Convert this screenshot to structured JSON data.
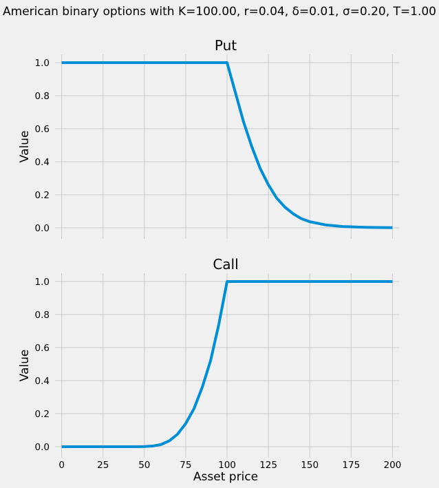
{
  "figure": {
    "suptitle": "American binary options with K=100.00, r=0.04, δ=0.01, σ=0.20, T=1.00",
    "background": "#f0f0f0",
    "grid_color": "#cbcbcb",
    "line_color": "#008fd5"
  },
  "chart_data": [
    {
      "type": "line",
      "title": "Put",
      "xlabel": "",
      "ylabel": "Value",
      "xlim": [
        -4,
        204
      ],
      "ylim": [
        -0.05,
        1.05
      ],
      "grid": true,
      "xticks": [
        0,
        25,
        50,
        75,
        100,
        125,
        150,
        175,
        200
      ],
      "xtick_labels": [],
      "yticks": [
        0.0,
        0.2,
        0.4,
        0.6,
        0.8,
        1.0
      ],
      "ytick_labels": [
        "0.0",
        "0.2",
        "0.4",
        "0.6",
        "0.8",
        "1.0"
      ],
      "series": [
        {
          "color": "#008fd5",
          "x": [
            0,
            25,
            50,
            75,
            100,
            105,
            110,
            115,
            120,
            125,
            130,
            135,
            140,
            145,
            150,
            160,
            170,
            180,
            190,
            200
          ],
          "y": [
            1.0,
            1.0,
            1.0,
            1.0,
            1.0,
            0.82,
            0.64,
            0.49,
            0.36,
            0.26,
            0.18,
            0.125,
            0.085,
            0.055,
            0.037,
            0.017,
            0.008,
            0.004,
            0.002,
            0.001
          ]
        }
      ]
    },
    {
      "type": "line",
      "title": "Call",
      "xlabel": "Asset price",
      "ylabel": "Value",
      "xlim": [
        -4,
        204
      ],
      "ylim": [
        -0.05,
        1.05
      ],
      "grid": true,
      "xticks": [
        0,
        25,
        50,
        75,
        100,
        125,
        150,
        175,
        200
      ],
      "xtick_labels": [
        "0",
        "25",
        "50",
        "75",
        "100",
        "125",
        "150",
        "175",
        "200"
      ],
      "yticks": [
        0.0,
        0.2,
        0.4,
        0.6,
        0.8,
        1.0
      ],
      "ytick_labels": [
        "0.0",
        "0.2",
        "0.4",
        "0.6",
        "0.8",
        "1.0"
      ],
      "series": [
        {
          "color": "#008fd5",
          "x": [
            0,
            25,
            45,
            50,
            55,
            60,
            65,
            70,
            75,
            80,
            85,
            90,
            95,
            100,
            125,
            150,
            175,
            200
          ],
          "y": [
            0.0,
            0.0,
            0.0,
            0.001,
            0.004,
            0.013,
            0.035,
            0.075,
            0.14,
            0.23,
            0.36,
            0.52,
            0.74,
            1.0,
            1.0,
            1.0,
            1.0,
            1.0
          ]
        }
      ]
    }
  ]
}
